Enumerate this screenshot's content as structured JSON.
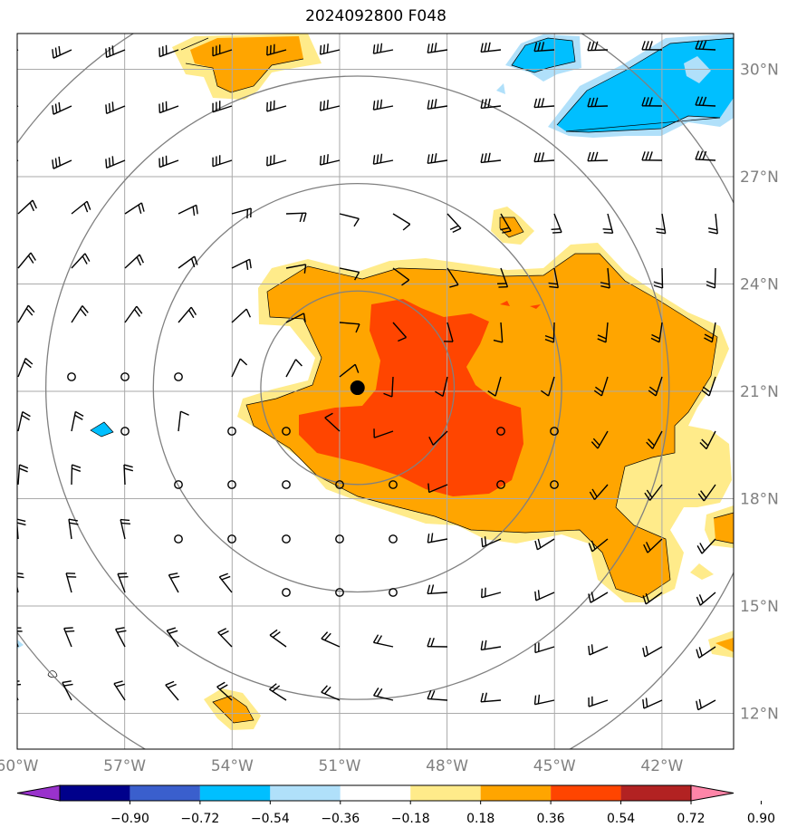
{
  "title": "2024092800 F048",
  "map": {
    "lon_range": [
      -60.0,
      -40.0
    ],
    "lat_range": [
      11.0,
      31.0
    ],
    "lon_ticks": [
      -60,
      -57,
      -54,
      -51,
      -48,
      -45,
      -42
    ],
    "lon_tick_labels": [
      "60°W",
      "57°W",
      "54°W",
      "51°W",
      "48°W",
      "45°W",
      "42°W"
    ],
    "lat_ticks": [
      12,
      15,
      18,
      21,
      24,
      27,
      30
    ],
    "lat_tick_labels": [
      "12°N",
      "15°N",
      "18°N",
      "21°N",
      "24°N",
      "27°N",
      "30°N"
    ],
    "center": {
      "lon": -50.5,
      "lat": 21.1
    },
    "range_rings_deg": [
      2.7,
      5.7,
      8.7,
      11.7
    ],
    "grid_color": "#aaaaaa",
    "ring_color": "#808080",
    "label_color": "#808080"
  },
  "colorbar": {
    "tick_labels": [
      "−0.90",
      "−0.72",
      "−0.54",
      "−0.36",
      "−0.18",
      "0.18",
      "0.36",
      "0.54",
      "0.72",
      "0.90"
    ],
    "colors": [
      "#9932cc",
      "#00008b",
      "#3a5fcd",
      "#00bfff",
      "#b0e0fa",
      "#ffffff",
      "#ffeb8a",
      "#ffa500",
      "#ff4500",
      "#b22222",
      "#ff85a8"
    ]
  },
  "fill_colors": {
    "pos_low": "#ffeb8a",
    "pos_mid": "#ffa500",
    "pos_high": "#ff4500",
    "neg_low": "#b0e0fa",
    "neg_mid": "#00bfff"
  }
}
